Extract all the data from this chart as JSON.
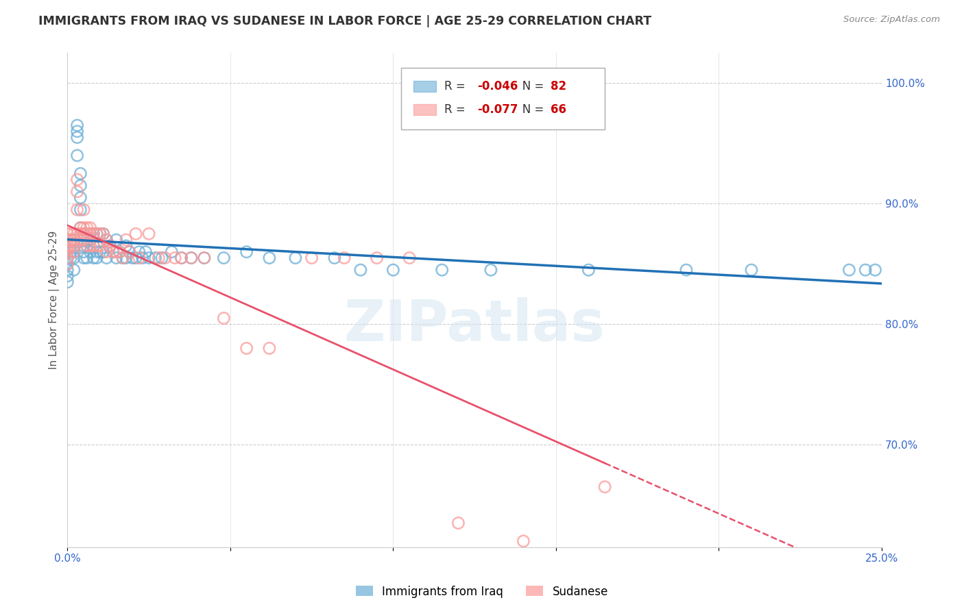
{
  "title": "IMMIGRANTS FROM IRAQ VS SUDANESE IN LABOR FORCE | AGE 25-29 CORRELATION CHART",
  "source": "Source: ZipAtlas.com",
  "ylabel": "In Labor Force | Age 25-29",
  "ylabel_right_ticks": [
    "100.0%",
    "90.0%",
    "80.0%",
    "70.0%"
  ],
  "ylabel_right_values": [
    1.0,
    0.9,
    0.8,
    0.7
  ],
  "xmin": 0.0,
  "xmax": 0.25,
  "ymin": 0.615,
  "ymax": 1.025,
  "legend_iraq_r": "-0.046",
  "legend_iraq_n": "82",
  "legend_sudanese_r": "-0.077",
  "legend_sudanese_n": "66",
  "iraq_color": "#6baed6",
  "sudanese_color": "#fb9a99",
  "iraq_line_color": "#2171b5",
  "sudanese_line_color": "#e8506a",
  "watermark": "ZIPatlas",
  "iraq_x": [
    0.0,
    0.0,
    0.0,
    0.0,
    0.0,
    0.001,
    0.001,
    0.001,
    0.001,
    0.002,
    0.002,
    0.002,
    0.002,
    0.002,
    0.003,
    0.003,
    0.003,
    0.003,
    0.004,
    0.004,
    0.004,
    0.004,
    0.004,
    0.005,
    0.005,
    0.005,
    0.005,
    0.005,
    0.006,
    0.006,
    0.006,
    0.007,
    0.007,
    0.007,
    0.008,
    0.008,
    0.008,
    0.009,
    0.009,
    0.009,
    0.01,
    0.01,
    0.011,
    0.011,
    0.012,
    0.012,
    0.013,
    0.014,
    0.015,
    0.015,
    0.016,
    0.017,
    0.018,
    0.018,
    0.019,
    0.02,
    0.021,
    0.022,
    0.023,
    0.024,
    0.025,
    0.027,
    0.029,
    0.032,
    0.035,
    0.038,
    0.042,
    0.048,
    0.055,
    0.062,
    0.07,
    0.082,
    0.09,
    0.1,
    0.115,
    0.13,
    0.16,
    0.19,
    0.21,
    0.24,
    0.245,
    0.248
  ],
  "iraq_y": [
    0.855,
    0.85,
    0.845,
    0.84,
    0.835,
    0.87,
    0.865,
    0.86,
    0.855,
    0.87,
    0.865,
    0.86,
    0.855,
    0.845,
    0.965,
    0.96,
    0.955,
    0.94,
    0.925,
    0.915,
    0.905,
    0.895,
    0.88,
    0.875,
    0.87,
    0.865,
    0.86,
    0.855,
    0.87,
    0.865,
    0.855,
    0.875,
    0.87,
    0.86,
    0.875,
    0.865,
    0.855,
    0.875,
    0.86,
    0.855,
    0.875,
    0.86,
    0.875,
    0.86,
    0.87,
    0.855,
    0.865,
    0.86,
    0.87,
    0.855,
    0.86,
    0.855,
    0.865,
    0.855,
    0.86,
    0.855,
    0.855,
    0.86,
    0.855,
    0.86,
    0.855,
    0.855,
    0.855,
    0.86,
    0.855,
    0.855,
    0.855,
    0.855,
    0.86,
    0.855,
    0.855,
    0.855,
    0.845,
    0.845,
    0.845,
    0.845,
    0.845,
    0.845,
    0.845,
    0.845,
    0.845,
    0.845
  ],
  "sudanese_x": [
    0.0,
    0.0,
    0.0,
    0.0,
    0.0,
    0.0,
    0.0,
    0.001,
    0.001,
    0.001,
    0.002,
    0.002,
    0.002,
    0.002,
    0.003,
    0.003,
    0.003,
    0.003,
    0.004,
    0.004,
    0.004,
    0.005,
    0.005,
    0.005,
    0.005,
    0.006,
    0.006,
    0.006,
    0.007,
    0.007,
    0.007,
    0.008,
    0.008,
    0.009,
    0.009,
    0.01,
    0.01,
    0.011,
    0.012,
    0.012,
    0.013,
    0.014,
    0.015,
    0.016,
    0.017,
    0.018,
    0.019,
    0.021,
    0.022,
    0.025,
    0.028,
    0.03,
    0.033,
    0.035,
    0.038,
    0.042,
    0.048,
    0.055,
    0.062,
    0.075,
    0.085,
    0.095,
    0.105,
    0.12,
    0.14,
    0.165
  ],
  "sudanese_y": [
    0.875,
    0.87,
    0.865,
    0.862,
    0.86,
    0.855,
    0.85,
    0.875,
    0.87,
    0.865,
    0.875,
    0.87,
    0.865,
    0.86,
    0.92,
    0.91,
    0.895,
    0.875,
    0.88,
    0.875,
    0.87,
    0.895,
    0.88,
    0.875,
    0.87,
    0.88,
    0.875,
    0.865,
    0.88,
    0.875,
    0.865,
    0.875,
    0.865,
    0.875,
    0.865,
    0.875,
    0.865,
    0.875,
    0.87,
    0.86,
    0.865,
    0.86,
    0.86,
    0.86,
    0.855,
    0.87,
    0.86,
    0.875,
    0.855,
    0.875,
    0.855,
    0.855,
    0.855,
    0.855,
    0.855,
    0.855,
    0.805,
    0.78,
    0.78,
    0.855,
    0.855,
    0.855,
    0.855,
    0.635,
    0.62,
    0.665
  ]
}
